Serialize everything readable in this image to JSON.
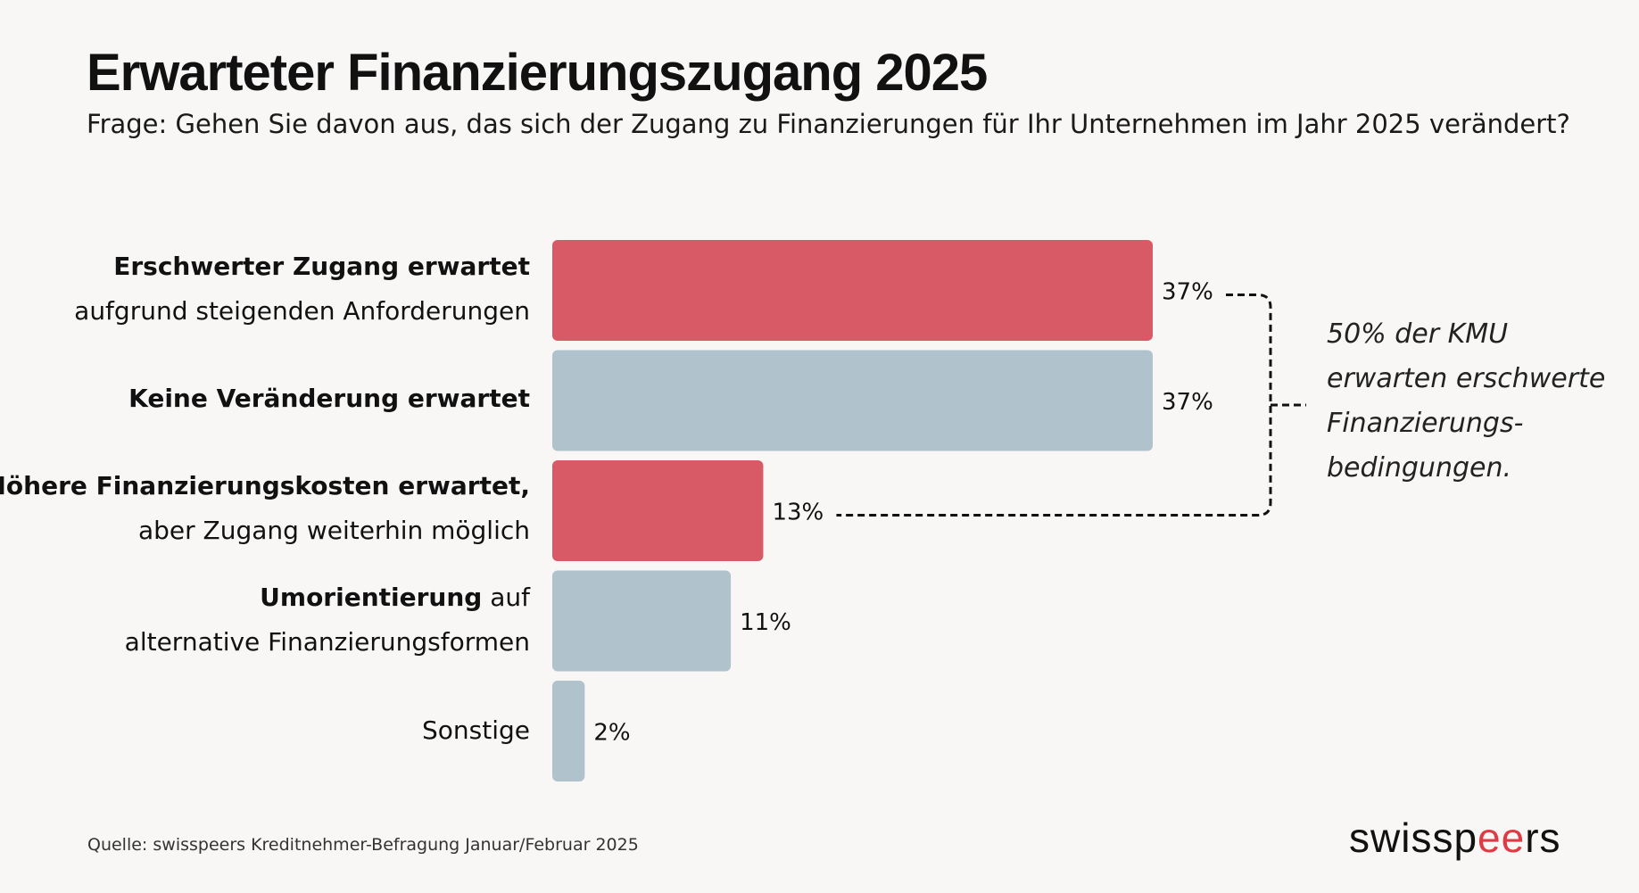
{
  "title": "Erwarteter Finanzierungszugang 2025",
  "subtitle": "Frage: Gehen Sie davon aus, das sich der Zugang zu Finanzierungen für Ihr Unternehmen im Jahr 2025 verändert?",
  "source": "Quelle: swisspeers Kreditnehmer-Befragung Januar/Februar 2025",
  "annotation": {
    "lines": [
      "50% der KMU",
      "erwarten erschwerte",
      "Finanzierungs-",
      "bedingungen."
    ]
  },
  "logo": {
    "part1": "swissp",
    "accent": "ee",
    "part2": "rs"
  },
  "colors": {
    "highlight": "#d85a66",
    "neutral": "#b0c2cc",
    "background": "#f8f7f6",
    "logo_accent": "#e03a44"
  },
  "chart_data": {
    "type": "bar",
    "orientation": "horizontal",
    "unit": "%",
    "categories": [
      "Erschwerter Zugang erwartet aufgrund steigenden Anforderungen",
      "Keine Veränderung erwartet",
      "Höhere Finanzierungskosten erwartet, aber Zugang weiterhin möglich",
      "Umorientierung auf alternative Finanzierungsformen",
      "Sonstige"
    ],
    "values": [
      37,
      37,
      13,
      11,
      2
    ],
    "value_labels": [
      "37%",
      "37%",
      "13%",
      "11%",
      "2%"
    ],
    "highlighted": [
      true,
      false,
      true,
      false,
      false
    ],
    "xlim": [
      0,
      37
    ],
    "grid": false,
    "legend": "none",
    "label_parts": [
      {
        "bold": "Erschwerter Zugang erwartet",
        "normal": "aufgrund steigenden Anforderungen"
      },
      {
        "bold": "Keine Veränderung erwartet",
        "normal": ""
      },
      {
        "bold": "Höhere Finanzierungskosten erwartet,",
        "normal": "aber Zugang weiterhin möglich"
      },
      {
        "bold": "Umorientierung",
        "normal_inline": " auf",
        "normal": "alternative Finanzierungsformen"
      },
      {
        "bold": "",
        "normal": "Sonstige"
      }
    ]
  }
}
